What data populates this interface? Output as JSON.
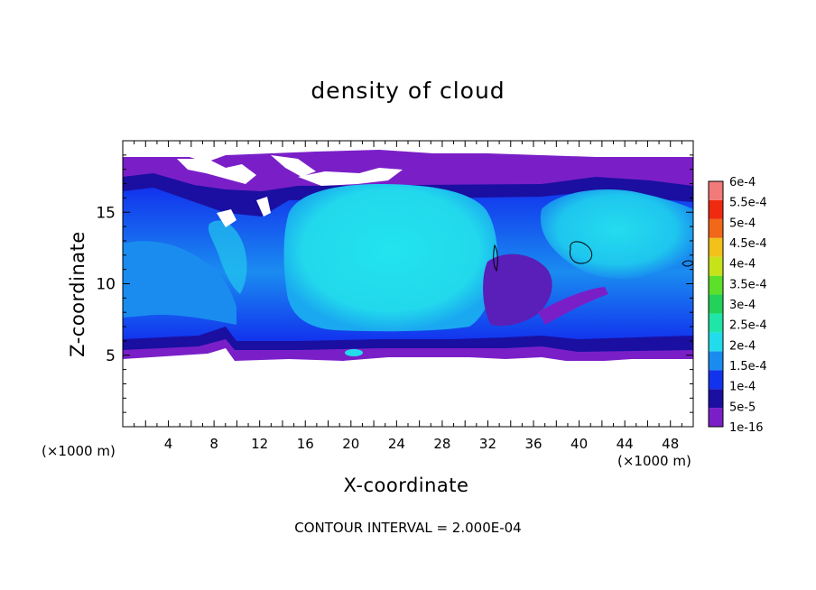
{
  "chart_data": {
    "type": "heatmap",
    "title": "density of cloud",
    "xlabel": "X-coordinate",
    "ylabel": "Z-coordinate",
    "x_unit_label": "(×1000 m)",
    "xlim": [
      0,
      50
    ],
    "ylim": [
      0,
      20
    ],
    "x_ticks": [
      4,
      8,
      12,
      16,
      20,
      24,
      28,
      32,
      36,
      40,
      44,
      48
    ],
    "y_ticks": [
      5,
      10,
      15
    ],
    "colorbar": {
      "labels": [
        "1e-16",
        "5e-5",
        "1e-4",
        "1.5e-4",
        "2e-4",
        "2.5e-4",
        "3e-4",
        "3.5e-4",
        "4e-4",
        "4.5e-4",
        "5e-4",
        "5.5e-4",
        "6e-4"
      ],
      "colors": [
        "#7a1fc8",
        "#1a0fa0",
        "#1233ee",
        "#1a8cf0",
        "#22dcec",
        "#1fe6a8",
        "#22d25a",
        "#5ce02a",
        "#c8e21a",
        "#f2c21a",
        "#f06818",
        "#f02a10",
        "#f27a78"
      ]
    },
    "contour_interval_text": "CONTOUR INTERVAL = 2.000E-04",
    "field_description": "cloud density field concentrated between Z≈5 and Z≈19; clear air below Z≈4.8; large cyan core near X 13–31, Z 7–17; second cyan cell near X 33–50, Z 8–16"
  }
}
